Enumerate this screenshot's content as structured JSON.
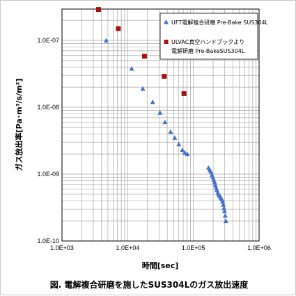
{
  "chart_data": {
    "type": "scatter",
    "title": "",
    "caption": "図. 電解複合研磨を施したSUS304Lのガス放出速度",
    "xlabel": "時間[sec]",
    "ylabel": "ガス放出率[Pa･m³/s/m²]",
    "x_scale": "log",
    "y_scale": "log",
    "xlim": [
      1000,
      1000000
    ],
    "ylim": [
      1e-10,
      3e-07
    ],
    "grid": true,
    "legend_position": "top-right",
    "x_tick_labels": [
      "1.0E+03",
      "1.0E+04",
      "1.0E+05",
      "1.0E+06"
    ],
    "y_tick_labels": [
      "1.0E-07",
      "1.0E-08",
      "1.0E-09",
      "1.0E-10"
    ],
    "series": [
      {
        "name": "UFT電解複合研磨 Pre-Bake SUS304L",
        "marker": "triangle",
        "color": "#4472C4",
        "points": [
          [
            4700,
            1e-07
          ],
          [
            11500,
            3.8e-08
          ],
          [
            17000,
            1.9e-08
          ],
          [
            24000,
            1.2e-08
          ],
          [
            31000,
            8.3e-09
          ],
          [
            37000,
            6e-09
          ],
          [
            45000,
            4.3e-09
          ],
          [
            52000,
            3.5e-09
          ],
          [
            60000,
            2.8e-09
          ],
          [
            68000,
            2.3e-09
          ],
          [
            74000,
            2.1e-09
          ],
          [
            81000,
            2e-09
          ],
          [
            170000,
            1.25e-09
          ],
          [
            178000,
            1.15e-09
          ],
          [
            185000,
            1.08e-09
          ],
          [
            192000,
            9.8e-10
          ],
          [
            198000,
            9e-10
          ],
          [
            204000,
            8.3e-10
          ],
          [
            210000,
            7.6e-10
          ],
          [
            216000,
            6.9e-10
          ],
          [
            222000,
            6.3e-10
          ],
          [
            228000,
            5.8e-10
          ],
          [
            235000,
            5.3e-10
          ],
          [
            242000,
            5e-10
          ],
          [
            250000,
            4.8e-10
          ],
          [
            258000,
            4.6e-10
          ],
          [
            265000,
            4.4e-10
          ],
          [
            272000,
            4.2e-10
          ],
          [
            278000,
            3.9e-10
          ],
          [
            285000,
            3.5e-10
          ],
          [
            292000,
            3.1e-10
          ],
          [
            298000,
            2.8e-10
          ],
          [
            305000,
            2.4e-10
          ],
          [
            312000,
            2e-10
          ]
        ]
      },
      {
        "name": "ULVAC真空ハンドブックより 電解研磨 Pre-BakeSUS304L",
        "marker": "square",
        "color": "#A31515",
        "points": [
          [
            3600,
            2.9e-07
          ],
          [
            7200,
            1.5e-07
          ],
          [
            18000,
            5.8e-08
          ],
          [
            36000,
            2.9e-08
          ],
          [
            72000,
            1.6e-08
          ]
        ]
      }
    ]
  }
}
